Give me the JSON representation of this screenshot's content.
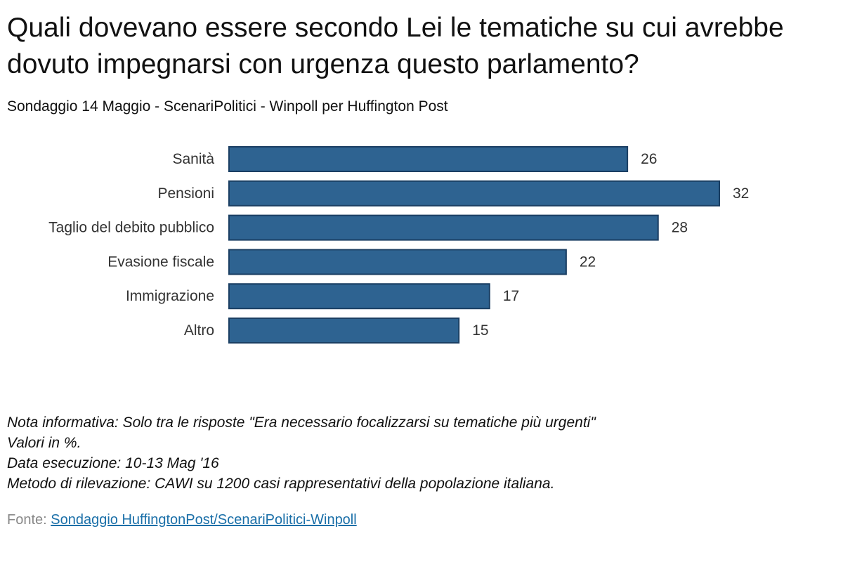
{
  "title": "Quali dovevano essere secondo Lei le tematiche su cui avrebbe dovuto impegnarsi con urgenza questo parlamento?",
  "subtitle": "Sondaggio 14 Maggio - ScenariPolitici - Winpoll per Huffington Post",
  "chart_data": {
    "type": "bar",
    "orientation": "horizontal",
    "categories": [
      "Sanità",
      "Pensioni",
      "Taglio del debito pubblico",
      "Evasione fiscale",
      "Immigrazione",
      "Altro"
    ],
    "values": [
      26,
      32,
      28,
      22,
      17,
      15
    ],
    "data_labels": [
      "26",
      "32",
      "28",
      "22",
      "17",
      "15"
    ],
    "title": "",
    "xlabel": "",
    "ylabel": "",
    "xlim": [
      0,
      32
    ],
    "grid": false,
    "legend": "none",
    "bar_color": "#2e6391",
    "bar_edge_color": "#1b3f63"
  },
  "notes": [
    "Nota informativa: Solo tra le risposte \"Era necessario focalizzarsi su tematiche più urgenti\"",
    "Valori in %.",
    "Data esecuzione: 10-13 Mag '16",
    "Metodo di rilevazione: CAWI su 1200 casi rappresentativi della popolazione italiana."
  ],
  "source": {
    "label": "Fonte:",
    "link_text": "Sondaggio HuffingtonPost/ScenariPolitici-Winpoll"
  }
}
